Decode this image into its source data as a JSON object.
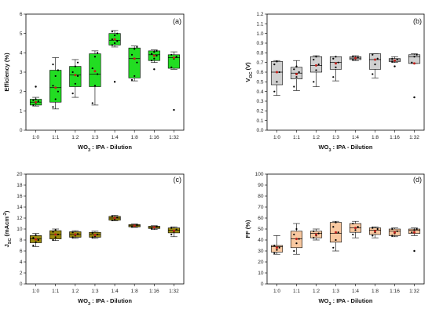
{
  "chart_data": [
    {
      "type": "box",
      "panel_label": "(a)",
      "categories": [
        "1:0",
        "1:1",
        "1:2",
        "1:3",
        "1:4",
        "1:8",
        "1:16",
        "1:32"
      ],
      "xlabel_main": "WO",
      "xlabel_sub": "3",
      "xlabel_rest": " : IPA - Dilution",
      "ylabel": "Efficiency (%)",
      "ylim": [
        0,
        6
      ],
      "yticks": [
        0,
        1,
        2,
        3,
        4,
        5,
        6
      ],
      "ytick_labels": [
        "0",
        "1",
        "2",
        "3",
        "4",
        "5",
        "6"
      ],
      "color": "#22dd22",
      "boxes": [
        {
          "q1": 1.3,
          "med": 1.45,
          "q3": 1.6,
          "wlo": 1.25,
          "whi": 1.7,
          "mean": 1.45,
          "pts": [
            1.3,
            1.4,
            1.5,
            1.55,
            1.6
          ],
          "out": [
            2.25
          ]
        },
        {
          "q1": 1.45,
          "med": 2.2,
          "q3": 3.1,
          "wlo": 1.1,
          "whi": 3.75,
          "mean": 2.2,
          "pts": [
            1.2,
            1.6,
            2.0,
            2.3,
            2.8,
            3.1,
            3.4
          ],
          "out": []
        },
        {
          "q1": 2.25,
          "med": 2.85,
          "q3": 3.3,
          "wlo": 1.7,
          "whi": 3.65,
          "mean": 2.85,
          "pts": [
            1.9,
            2.4,
            2.8,
            3.0,
            3.3,
            3.5
          ],
          "out": []
        },
        {
          "q1": 2.25,
          "med": 2.9,
          "q3": 3.95,
          "wlo": 1.3,
          "whi": 4.1,
          "mean": 3.05,
          "pts": [
            1.4,
            2.3,
            2.9,
            3.2,
            3.8,
            4.0
          ],
          "out": []
        },
        {
          "q1": 4.4,
          "med": 4.65,
          "q3": 5.0,
          "wlo": 4.3,
          "whi": 5.15,
          "mean": 4.7,
          "pts": [
            4.4,
            4.5,
            4.6,
            4.7,
            4.9,
            5.0,
            5.1
          ],
          "out": [
            2.5
          ]
        },
        {
          "q1": 2.7,
          "med": 3.7,
          "q3": 4.25,
          "wlo": 2.55,
          "whi": 4.35,
          "mean": 3.7,
          "pts": [
            2.6,
            2.8,
            3.5,
            3.9,
            4.2,
            4.3
          ],
          "out": []
        },
        {
          "q1": 3.6,
          "med": 3.9,
          "q3": 4.1,
          "wlo": 3.5,
          "whi": 4.15,
          "mean": 3.85,
          "pts": [
            3.6,
            3.7,
            3.85,
            3.95,
            4.05,
            4.1
          ],
          "out": [
            3.15
          ]
        },
        {
          "q1": 3.2,
          "med": 3.75,
          "q3": 3.9,
          "wlo": 3.15,
          "whi": 4.05,
          "mean": 3.75,
          "pts": [
            3.25,
            3.7,
            3.8,
            3.9
          ],
          "out": [
            1.05
          ]
        }
      ]
    },
    {
      "type": "box",
      "panel_label": "(b)",
      "categories": [
        "1:0",
        "1:1",
        "1:2",
        "1:3",
        "1:4",
        "1:8",
        "1:16",
        "1:32"
      ],
      "xlabel_main": "WO",
      "xlabel_sub": "3",
      "xlabel_rest": " : IPA - Dilution",
      "ylabel": "V",
      "ylabel_sub": "OC",
      "ylabel_rest": " (V)",
      "ylim": [
        0.0,
        1.2
      ],
      "yticks": [
        0.0,
        0.1,
        0.2,
        0.3,
        0.4,
        0.5,
        0.6,
        0.7,
        0.8,
        0.9,
        1.0,
        1.1,
        1.2
      ],
      "ytick_labels": [
        "0.0",
        "0.1",
        "0.2",
        "0.3",
        "0.4",
        "0.5",
        "0.6",
        "0.7",
        "0.8",
        "0.9",
        "1.0",
        "1.1",
        "1.2"
      ],
      "color": "#d0d0d0",
      "boxes": [
        {
          "q1": 0.47,
          "med": 0.6,
          "q3": 0.71,
          "wlo": 0.36,
          "whi": 0.72,
          "mean": 0.6,
          "pts": [
            0.4,
            0.5,
            0.6,
            0.68,
            0.71
          ],
          "out": []
        },
        {
          "q1": 0.53,
          "med": 0.59,
          "q3": 0.65,
          "wlo": 0.41,
          "whi": 0.72,
          "mean": 0.58,
          "pts": [
            0.45,
            0.55,
            0.6,
            0.63,
            0.66
          ],
          "out": []
        },
        {
          "q1": 0.6,
          "med": 0.67,
          "q3": 0.76,
          "wlo": 0.45,
          "whi": 0.77,
          "mean": 0.67,
          "pts": [
            0.5,
            0.62,
            0.68,
            0.73,
            0.76
          ],
          "out": []
        },
        {
          "q1": 0.63,
          "med": 0.7,
          "q3": 0.76,
          "wlo": 0.51,
          "whi": 0.76,
          "mean": 0.69,
          "pts": [
            0.55,
            0.65,
            0.7,
            0.74,
            0.76
          ],
          "out": []
        },
        {
          "q1": 0.73,
          "med": 0.745,
          "q3": 0.76,
          "wlo": 0.72,
          "whi": 0.77,
          "mean": 0.745,
          "pts": [
            0.73,
            0.74,
            0.75,
            0.76
          ],
          "out": []
        },
        {
          "q1": 0.63,
          "med": 0.73,
          "q3": 0.79,
          "wlo": 0.54,
          "whi": 0.79,
          "mean": 0.73,
          "pts": [
            0.58,
            0.68,
            0.74,
            0.78
          ],
          "out": []
        },
        {
          "q1": 0.71,
          "med": 0.725,
          "q3": 0.74,
          "wlo": 0.7,
          "whi": 0.76,
          "mean": 0.72,
          "pts": [
            0.71,
            0.72,
            0.73,
            0.74
          ],
          "out": [
            0.66
          ]
        },
        {
          "q1": 0.69,
          "med": 0.76,
          "q3": 0.78,
          "wlo": 0.69,
          "whi": 0.79,
          "mean": 0.69,
          "pts": [
            0.7,
            0.76,
            0.78
          ],
          "out": [
            0.34
          ]
        }
      ]
    },
    {
      "type": "box",
      "panel_label": "(c)",
      "categories": [
        "1:0",
        "1:1",
        "1:2",
        "1:3",
        "1:4",
        "1:8",
        "1:16",
        "1:32"
      ],
      "xlabel_main": "WO",
      "xlabel_sub": "3",
      "xlabel_rest": " : IPA - Dilution",
      "ylabel": "J",
      "ylabel_sub": "SC",
      "ylabel_rest": " (mAcm",
      "ylabel_sup": "-2",
      "ylabel_end": ")",
      "ylim": [
        0,
        20
      ],
      "yticks": [
        0,
        2,
        4,
        6,
        8,
        10,
        12,
        14,
        16,
        18,
        20
      ],
      "ytick_labels": [
        "0",
        "2",
        "4",
        "6",
        "8",
        "10",
        "12",
        "14",
        "16",
        "18",
        "20"
      ],
      "color": "#9a8a0e",
      "boxes": [
        {
          "q1": 7.5,
          "med": 8.2,
          "q3": 8.8,
          "wlo": 6.8,
          "whi": 9.2,
          "mean": 8.1,
          "pts": [
            7.0,
            7.6,
            8.0,
            8.4,
            8.9
          ],
          "out": []
        },
        {
          "q1": 8.2,
          "med": 9.0,
          "q3": 9.7,
          "wlo": 7.9,
          "whi": 10.0,
          "mean": 9.0,
          "pts": [
            8.0,
            8.5,
            9.0,
            9.5,
            9.8
          ],
          "out": []
        },
        {
          "q1": 8.5,
          "med": 9.0,
          "q3": 9.5,
          "wlo": 8.3,
          "whi": 9.7,
          "mean": 9.0,
          "pts": [
            8.5,
            8.8,
            9.1,
            9.4
          ],
          "out": []
        },
        {
          "q1": 8.5,
          "med": 9.0,
          "q3": 9.4,
          "wlo": 8.3,
          "whi": 9.6,
          "mean": 8.9,
          "pts": [
            8.5,
            8.7,
            9.0,
            9.3
          ],
          "out": []
        },
        {
          "q1": 11.6,
          "med": 12.0,
          "q3": 12.3,
          "wlo": 11.5,
          "whi": 12.5,
          "mean": 12.0,
          "pts": [
            11.6,
            11.8,
            12.1,
            12.3
          ],
          "out": []
        },
        {
          "q1": 10.4,
          "med": 10.6,
          "q3": 10.8,
          "wlo": 10.3,
          "whi": 10.9,
          "mean": 10.6,
          "pts": [
            10.4,
            10.6,
            10.8
          ],
          "out": []
        },
        {
          "q1": 10.1,
          "med": 10.3,
          "q3": 10.5,
          "wlo": 9.9,
          "whi": 10.6,
          "mean": 10.3,
          "pts": [
            10.1,
            10.3,
            10.5
          ],
          "out": []
        },
        {
          "q1": 9.3,
          "med": 9.8,
          "q3": 10.2,
          "wlo": 8.6,
          "whi": 10.4,
          "mean": 9.7,
          "pts": [
            9.0,
            9.5,
            9.9,
            10.2
          ],
          "out": []
        }
      ]
    },
    {
      "type": "box",
      "panel_label": "(d)",
      "categories": [
        "1:0",
        "1:1",
        "1:2",
        "1:3",
        "1:4",
        "1:8",
        "1:16",
        "1:32"
      ],
      "xlabel_main": "WO",
      "xlabel_sub": "3",
      "xlabel_rest": " : IPA - Dilution",
      "ylabel": "FF (%)",
      "ylim": [
        0,
        100
      ],
      "yticks": [
        0,
        10,
        20,
        30,
        40,
        50,
        60,
        70,
        80,
        90,
        100
      ],
      "ytick_labels": [
        "0",
        "10",
        "20",
        "30",
        "40",
        "50",
        "60",
        "70",
        "80",
        "90",
        "100"
      ],
      "color": "#f8c8a0",
      "boxes": [
        {
          "q1": 29,
          "med": 34,
          "q3": 35,
          "wlo": 27,
          "whi": 44,
          "mean": 33,
          "pts": [
            28,
            31,
            33,
            35
          ],
          "out": []
        },
        {
          "q1": 33,
          "med": 41,
          "q3": 48,
          "wlo": 27,
          "whi": 55,
          "mean": 41,
          "pts": [
            30,
            37,
            41,
            45,
            50
          ],
          "out": []
        },
        {
          "q1": 42,
          "med": 46,
          "q3": 48,
          "wlo": 40,
          "whi": 50,
          "mean": 45,
          "pts": [
            42,
            44,
            46,
            48
          ],
          "out": []
        },
        {
          "q1": 38,
          "med": 46,
          "q3": 56,
          "wlo": 30,
          "whi": 57,
          "mean": 47,
          "pts": [
            33,
            40,
            47,
            52,
            56
          ],
          "out": []
        },
        {
          "q1": 47,
          "med": 51,
          "q3": 55,
          "wlo": 42,
          "whi": 57,
          "mean": 51,
          "pts": [
            45,
            49,
            52,
            55
          ],
          "out": []
        },
        {
          "q1": 45,
          "med": 49,
          "q3": 51,
          "wlo": 42,
          "whi": 52,
          "mean": 48,
          "pts": [
            44,
            47,
            50,
            51
          ],
          "out": []
        },
        {
          "q1": 44,
          "med": 48,
          "q3": 50,
          "wlo": 43,
          "whi": 51,
          "mean": 47,
          "pts": [
            44,
            46,
            48,
            50
          ],
          "out": []
        },
        {
          "q1": 46,
          "med": 49,
          "q3": 50,
          "wlo": 44,
          "whi": 51,
          "mean": 47,
          "pts": [
            47,
            49,
            50
          ],
          "out": [
            30
          ]
        }
      ]
    }
  ]
}
